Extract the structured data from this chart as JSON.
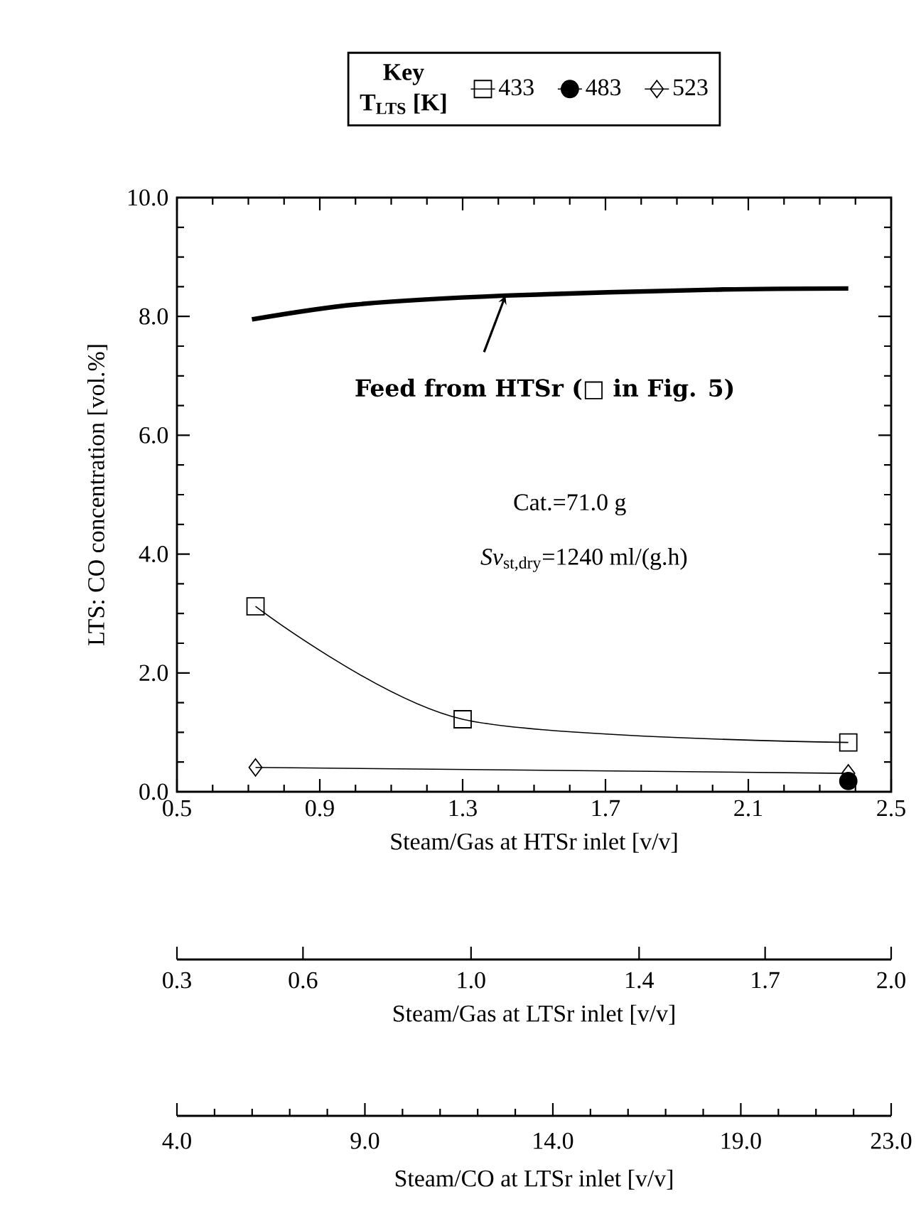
{
  "chart_data": {
    "type": "line",
    "xlabel": "Steam/Gas at HTSr inlet  [v/v]",
    "ylabel": "LTS:  CO concentration  [vol.%]",
    "x2label": "Steam/Gas at LTSr inlet  [v/v]",
    "legend_title": "Key",
    "legend": "top",
    "xlim": [
      0.5,
      2.5
    ],
    "xticks": [
      0.5,
      {
        "value": 0.6,
        "label": null
      },
      {
        "value": 0.7,
        "label": null
      },
      {
        "value": 0.8,
        "label": null
      },
      0.9,
      {
        "value": 1.0,
        "label": null
      },
      {
        "value": 1.1,
        "label": null
      },
      {
        "value": 1.2,
        "label": null
      },
      1.3,
      {
        "value": 1.4,
        "label": null
      },
      {
        "value": 1.5,
        "label": null
      },
      {
        "value": 1.6,
        "label": null
      },
      1.7,
      {
        "value": 1.8,
        "label": null
      },
      {
        "value": 1.9,
        "label": null
      },
      {
        "value": 2.0,
        "label": null
      },
      2.1,
      {
        "value": 2.2,
        "label": null
      },
      {
        "value": 2.3,
        "label": null
      },
      {
        "value": 2.4,
        "label": null
      },
      2.5
    ],
    "ylim": [
      0,
      10
    ],
    "yticks": [
      {
        "value": 0,
        "label": "0.0"
      },
      {
        "value": 0.5,
        "label": null
      },
      {
        "value": 1,
        "label": null
      },
      {
        "value": 1.5,
        "label": null
      },
      {
        "value": 2,
        "label": "2.0"
      },
      {
        "value": 2.5,
        "label": null
      },
      {
        "value": 3,
        "label": null
      },
      {
        "value": 3.5,
        "label": null
      },
      {
        "value": 4,
        "label": "4.0"
      },
      {
        "value": 4.5,
        "label": null
      },
      {
        "value": 5,
        "label": null
      },
      {
        "value": 5.5,
        "label": null
      },
      {
        "value": 6,
        "label": "6.0"
      },
      {
        "value": 6.5,
        "label": null
      },
      {
        "value": 7,
        "label": null
      },
      {
        "value": 7.5,
        "label": null
      },
      {
        "value": 8,
        "label": "8.0"
      },
      {
        "value": 8.5,
        "label": null
      },
      {
        "value": 9,
        "label": null
      },
      {
        "value": 9.5,
        "label": null
      },
      {
        "value": 10,
        "label": "10.0"
      }
    ],
    "x2lim": [
      0.3,
      2.0
    ],
    "x2ticks": [
      0.3,
      0.6,
      {
        "value": 1.0,
        "label": "1.0"
      },
      1.4,
      1.7,
      {
        "value": 2.0,
        "label": "2.0"
      }
    ],
    "series": [
      {
        "name": "433",
        "color": "#000000",
        "marker": "square",
        "x": [
          0.72,
          1.3,
          2.38
        ],
        "values": [
          3.12,
          1.22,
          0.83
        ]
      },
      {
        "name": "483",
        "color": "#000000",
        "marker": "circle",
        "x": [
          2.38
        ],
        "values": [
          0.18
        ]
      },
      {
        "name": "523",
        "color": "#000000",
        "marker": "diamond",
        "x": [
          0.72,
          2.38
        ],
        "values": [
          0.41,
          0.31
        ]
      },
      {
        "color": "#000000",
        "marker": "none",
        "x": [
          0.71,
          1.0,
          1.42,
          2.0,
          2.38
        ],
        "values": [
          7.95,
          8.2,
          8.35,
          8.45,
          8.47
        ]
      }
    ],
    "annotations": [
      "T$_{LTS}$ [K]",
      {
        "text": "Feed from HTSr (□  in Fig. 5)",
        "x": 1.42,
        "y": 8.35
      },
      "Cat.=71.0 g",
      "*Sv*$_{st,dry}$=1240 ml/(g.h)",
      "Steam/CO at LTSr inlet  [v/v]",
      "4.0",
      "9.0",
      "14.0",
      "19.0",
      "23.0"
    ]
  }
}
